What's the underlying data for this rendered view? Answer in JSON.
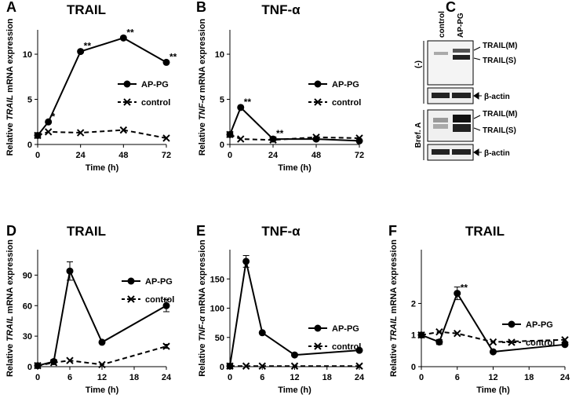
{
  "chart_data": [
    {
      "type": "line",
      "panel": "A",
      "title": "TRAIL",
      "xlabel": "Time (h)",
      "ylabel": {
        "pre": "Relative ",
        "gene": "TRAIL",
        "post": " mRNA expression"
      },
      "x": [
        0,
        6,
        24,
        48,
        72
      ],
      "xlim": [
        0,
        72
      ],
      "xticks": [
        0,
        24,
        48,
        72
      ],
      "ylim": [
        0,
        12.7
      ],
      "yticks": [
        0,
        5,
        10
      ],
      "legend": "right",
      "series": [
        {
          "name": "AP-PG",
          "color": "#000000",
          "dash": false,
          "marker": "circle",
          "values": [
            1,
            2.5,
            10.3,
            11.8,
            9.1
          ],
          "annotations": [
            null,
            "*",
            "**",
            "**",
            "**"
          ]
        },
        {
          "name": "control",
          "color": "#000000",
          "dash": true,
          "marker": "x",
          "values": [
            1,
            1.4,
            1.3,
            1.6,
            0.7
          ]
        }
      ]
    },
    {
      "type": "line",
      "panel": "B",
      "title": "TNF-α",
      "xlabel": "Time (h)",
      "ylabel": {
        "pre": "Relative ",
        "gene": "TNF-α",
        "post": " mRNA expression"
      },
      "x": [
        0,
        6,
        24,
        48,
        72
      ],
      "xlim": [
        0,
        72
      ],
      "xticks": [
        0,
        24,
        48,
        72
      ],
      "ylim": [
        0,
        12.7
      ],
      "yticks": [
        0,
        5,
        10
      ],
      "legend": "right",
      "series": [
        {
          "name": "AP-PG",
          "color": "#000000",
          "dash": false,
          "marker": "circle",
          "values": [
            1.1,
            4.1,
            0.6,
            0.6,
            0.4
          ],
          "annotations": [
            null,
            "**",
            "**",
            null,
            null
          ]
        },
        {
          "name": "control",
          "color": "#000000",
          "dash": true,
          "marker": "x",
          "values": [
            1.1,
            0.6,
            0.5,
            0.8,
            0.7
          ]
        }
      ]
    },
    {
      "type": "line",
      "panel": "D",
      "title": "TRAIL",
      "xlabel": "Time (h)",
      "ylabel": {
        "pre": "Relative ",
        "gene": "TRAIL",
        "post": " mRNA expression"
      },
      "x": [
        0,
        3,
        6,
        12,
        24
      ],
      "xlim": [
        0,
        24
      ],
      "xticks": [
        0,
        6,
        12,
        18,
        24
      ],
      "ylim": [
        0,
        115
      ],
      "yticks": [
        0,
        30,
        60,
        90
      ],
      "legend": "right",
      "series": [
        {
          "name": "AP-PG",
          "color": "#000000",
          "dash": false,
          "marker": "circle",
          "values": [
            1,
            5,
            94,
            24,
            60
          ],
          "errors": [
            null,
            null,
            9,
            null,
            6
          ]
        },
        {
          "name": "control",
          "color": "#000000",
          "dash": true,
          "marker": "x",
          "values": [
            1,
            4,
            6,
            2,
            20
          ],
          "errors": [
            null,
            null,
            null,
            null,
            2
          ]
        }
      ]
    },
    {
      "type": "line",
      "panel": "E",
      "title": "TNF-α",
      "xlabel": "Time (h)",
      "ylabel": {
        "pre": "Relative ",
        "gene": "TNF-α",
        "post": " mRNA expression"
      },
      "x": [
        0,
        3,
        6,
        12,
        24
      ],
      "xlim": [
        0,
        24
      ],
      "xticks": [
        0,
        6,
        12,
        18,
        24
      ],
      "ylim": [
        0,
        200
      ],
      "yticks": [
        0,
        50,
        100,
        150
      ],
      "legend": "right",
      "series": [
        {
          "name": "AP-PG",
          "color": "#000000",
          "dash": false,
          "marker": "circle",
          "values": [
            1,
            180,
            58,
            20,
            28
          ],
          "errors": [
            null,
            10,
            null,
            null,
            null
          ]
        },
        {
          "name": "control",
          "color": "#000000",
          "dash": true,
          "marker": "x",
          "values": [
            1,
            1,
            1,
            1,
            1
          ]
        }
      ]
    },
    {
      "type": "line",
      "panel": "F",
      "title": "TRAIL",
      "xlabel": "Time (h)",
      "ylabel": {
        "pre": "Relative ",
        "gene": "TRAIL",
        "post": " mRNA expression"
      },
      "x": [
        0,
        3,
        6,
        12,
        24
      ],
      "xlim": [
        0,
        24
      ],
      "xticks": [
        0,
        6,
        12,
        18,
        24
      ],
      "ylim": [
        0,
        3.7
      ],
      "yticks": [
        0,
        1,
        2
      ],
      "legend": "right",
      "series": [
        {
          "name": "AP-PG",
          "color": "#000000",
          "dash": false,
          "marker": "circle",
          "values": [
            1,
            0.78,
            2.32,
            0.47,
            0.7
          ],
          "errors": [
            null,
            0.08,
            0.2,
            null,
            null
          ],
          "annotations": [
            null,
            null,
            "**",
            null,
            null
          ]
        },
        {
          "name": "control",
          "color": "#000000",
          "dash": true,
          "marker": "x",
          "values": [
            1,
            1.1,
            1.05,
            0.78,
            0.85
          ]
        }
      ]
    }
  ],
  "blot": {
    "panel": "C",
    "lanes": [
      "control",
      "AP-PG"
    ],
    "groups": [
      {
        "label": "(-)",
        "bands": [
          "TRAIL(M)",
          "TRAIL(S)"
        ],
        "loading": "β-actin"
      },
      {
        "label": "Bref. A",
        "bands": [
          "TRAIL(M)",
          "TRAIL(S)"
        ],
        "loading": "β-actin"
      }
    ]
  }
}
